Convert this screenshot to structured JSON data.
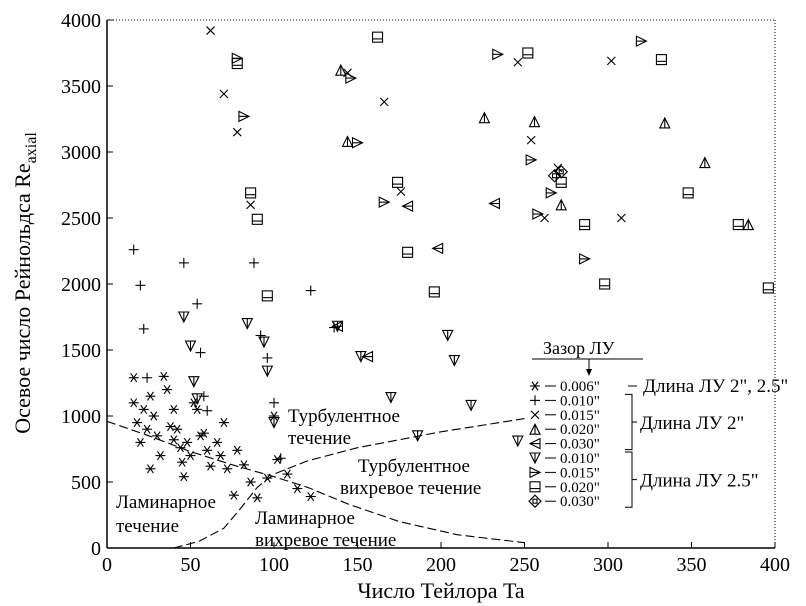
{
  "chart_data": {
    "type": "scatter",
    "xlabel": "Число Тейлора Ta",
    "ylabel": "Осевое число Рейнольдса Re",
    "ylabel_sub": "axial",
    "xlim": [
      0,
      400
    ],
    "ylim": [
      0,
      4000
    ],
    "xticks": [
      0,
      50,
      100,
      150,
      200,
      250,
      300,
      350,
      400
    ],
    "yticks": [
      0,
      500,
      1000,
      1500,
      2000,
      2500,
      3000,
      3500,
      4000
    ],
    "legend": {
      "title": "Зазор ЛУ",
      "entries": [
        {
          "marker": "asterisk",
          "label": "0.006\"",
          "group": 0
        },
        {
          "marker": "plus",
          "label": "0.010\"",
          "group": 1
        },
        {
          "marker": "x",
          "label": "0.015\"",
          "group": 1
        },
        {
          "marker": "triangle-up",
          "label": "0.020\"",
          "group": 1
        },
        {
          "marker": "triangle-left",
          "label": "0.030\"",
          "group": 1
        },
        {
          "marker": "triangle-down",
          "label": "0.010\"",
          "group": 2
        },
        {
          "marker": "triangle-right",
          "label": "0.015\"",
          "group": 2
        },
        {
          "marker": "square",
          "label": "0.020\"",
          "group": 2
        },
        {
          "marker": "diamond",
          "label": "0.030\"",
          "group": 2
        }
      ],
      "group_labels": [
        "Длина ЛУ 2\", 2.5\"",
        "Длина ЛУ 2\"",
        "Длина ЛУ 2.5\""
      ]
    },
    "regions": [
      "Ламинарное",
      "течение",
      "Ламинарное",
      "вихревое течение",
      "Турбулентное",
      "течение",
      "Турбулентное",
      "вихревое течение"
    ],
    "boundaries": {
      "laminar_turbulent": [
        [
          0,
          960
        ],
        [
          25,
          850
        ],
        [
          50,
          730
        ],
        [
          75,
          630
        ],
        [
          100,
          540
        ],
        [
          120,
          460
        ],
        [
          145,
          330
        ],
        [
          175,
          200
        ],
        [
          210,
          100
        ],
        [
          250,
          40
        ]
      ],
      "laminar_vortex": [
        [
          40,
          0
        ],
        [
          55,
          50
        ],
        [
          70,
          150
        ],
        [
          80,
          300
        ],
        [
          90,
          460
        ],
        [
          100,
          560
        ],
        [
          120,
          660
        ],
        [
          150,
          760
        ],
        [
          200,
          880
        ],
        [
          250,
          980
        ]
      ]
    },
    "series": [
      {
        "marker": "asterisk",
        "points": [
          [
            16,
            1290
          ],
          [
            16,
            1100
          ],
          [
            18,
            950
          ],
          [
            20,
            800
          ],
          [
            22,
            1050
          ],
          [
            24,
            900
          ],
          [
            26,
            1150
          ],
          [
            26,
            600
          ],
          [
            28,
            1000
          ],
          [
            30,
            850
          ],
          [
            32,
            700
          ],
          [
            34,
            1300
          ],
          [
            36,
            1200
          ],
          [
            38,
            920
          ],
          [
            40,
            1050
          ],
          [
            40,
            820
          ],
          [
            42,
            900
          ],
          [
            44,
            760
          ],
          [
            45,
            650
          ],
          [
            46,
            540
          ],
          [
            48,
            800
          ],
          [
            50,
            700
          ],
          [
            52,
            1100
          ],
          [
            54,
            1050
          ],
          [
            56,
            850
          ],
          [
            58,
            870
          ],
          [
            60,
            740
          ],
          [
            62,
            620
          ],
          [
            66,
            800
          ],
          [
            68,
            700
          ],
          [
            70,
            950
          ],
          [
            72,
            600
          ],
          [
            76,
            400
          ],
          [
            78,
            740
          ],
          [
            82,
            630
          ],
          [
            86,
            500
          ],
          [
            90,
            380
          ],
          [
            96,
            530
          ],
          [
            100,
            1000
          ],
          [
            102,
            670
          ],
          [
            108,
            560
          ],
          [
            114,
            450
          ],
          [
            122,
            390
          ]
        ]
      },
      {
        "marker": "plus",
        "points": [
          [
            16,
            2260
          ],
          [
            20,
            1990
          ],
          [
            22,
            1660
          ],
          [
            24,
            1290
          ],
          [
            46,
            2160
          ],
          [
            54,
            1850
          ],
          [
            56,
            1480
          ],
          [
            58,
            1150
          ],
          [
            60,
            1040
          ],
          [
            88,
            2160
          ],
          [
            92,
            1610
          ],
          [
            96,
            1440
          ],
          [
            100,
            1100
          ],
          [
            104,
            680
          ],
          [
            122,
            1950
          ],
          [
            136,
            1670
          ]
        ]
      },
      {
        "marker": "x",
        "points": [
          [
            62,
            3920
          ],
          [
            70,
            3440
          ],
          [
            78,
            3150
          ],
          [
            86,
            2600
          ],
          [
            144,
            3600
          ],
          [
            166,
            3380
          ],
          [
            176,
            2700
          ],
          [
            246,
            3680
          ],
          [
            254,
            3090
          ],
          [
            262,
            2500
          ],
          [
            270,
            2880
          ],
          [
            302,
            3690
          ],
          [
            308,
            2500
          ]
        ]
      },
      {
        "marker": "triangle-up",
        "points": [
          [
            140,
            3620
          ],
          [
            144,
            3080
          ],
          [
            226,
            3260
          ],
          [
            256,
            3230
          ],
          [
            272,
            2600
          ],
          [
            334,
            3220
          ],
          [
            358,
            2920
          ],
          [
            384,
            2450
          ]
        ]
      },
      {
        "marker": "triangle-left",
        "points": [
          [
            138,
            1680
          ],
          [
            156,
            1450
          ],
          [
            180,
            2590
          ],
          [
            198,
            2270
          ],
          [
            232,
            2610
          ]
        ]
      },
      {
        "marker": "triangle-down",
        "points": [
          [
            46,
            1750
          ],
          [
            50,
            1530
          ],
          [
            52,
            1260
          ],
          [
            54,
            1130
          ],
          [
            84,
            1700
          ],
          [
            94,
            1560
          ],
          [
            96,
            1340
          ],
          [
            100,
            950
          ],
          [
            138,
            1680
          ],
          [
            152,
            1450
          ],
          [
            170,
            1140
          ],
          [
            186,
            850
          ],
          [
            204,
            1610
          ],
          [
            208,
            1420
          ],
          [
            218,
            1080
          ],
          [
            246,
            810
          ]
        ]
      },
      {
        "marker": "triangle-right",
        "points": [
          [
            78,
            3710
          ],
          [
            82,
            3270
          ],
          [
            146,
            3560
          ],
          [
            150,
            3070
          ],
          [
            166,
            2620
          ],
          [
            234,
            3740
          ],
          [
            254,
            2940
          ],
          [
            258,
            2530
          ],
          [
            266,
            2690
          ],
          [
            320,
            3840
          ],
          [
            286,
            2190
          ]
        ]
      },
      {
        "marker": "square",
        "points": [
          [
            86,
            2690
          ],
          [
            90,
            2490
          ],
          [
            96,
            1910
          ],
          [
            78,
            3670
          ],
          [
            162,
            3870
          ],
          [
            174,
            2770
          ],
          [
            180,
            2240
          ],
          [
            196,
            1940
          ],
          [
            252,
            3750
          ],
          [
            272,
            2770
          ],
          [
            298,
            2000
          ],
          [
            286,
            2450
          ],
          [
            332,
            3700
          ],
          [
            348,
            2690
          ],
          [
            378,
            2450
          ],
          [
            396,
            1970
          ]
        ]
      },
      {
        "marker": "diamond",
        "points": [
          [
            268,
            2820
          ],
          [
            272,
            2850
          ]
        ]
      }
    ]
  }
}
